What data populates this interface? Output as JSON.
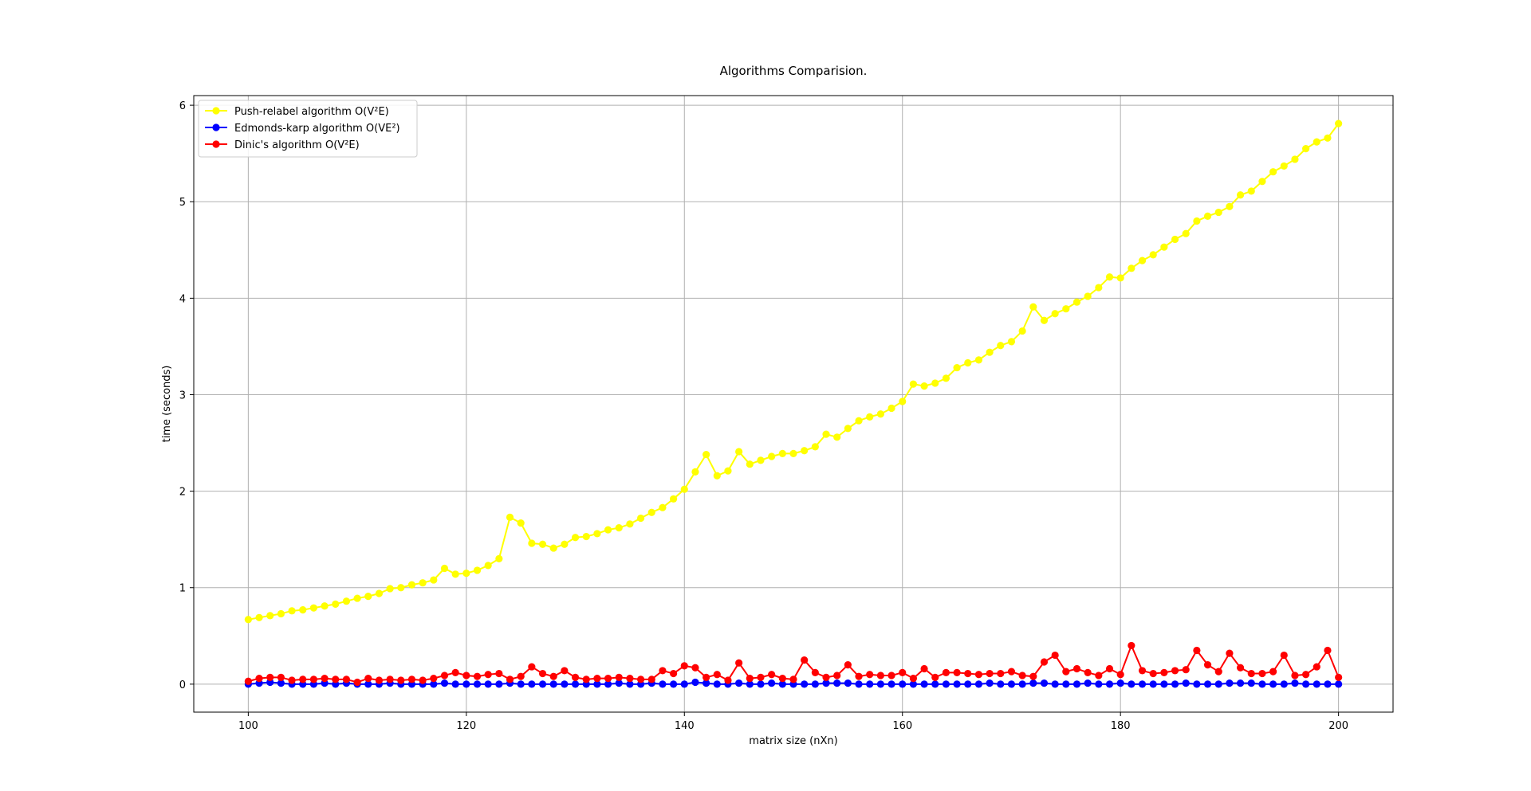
{
  "chart_data": {
    "type": "line",
    "title": "Algorithms Comparision.",
    "xlabel": "matrix size (nXn)",
    "ylabel": "time (seconds)",
    "xlim": [
      95,
      205
    ],
    "ylim": [
      -0.29,
      6.1
    ],
    "xticks": [
      100,
      120,
      140,
      160,
      180,
      200
    ],
    "yticks": [
      0,
      1,
      2,
      3,
      4,
      5,
      6
    ],
    "grid": true,
    "legend_position": "top-left",
    "x_start": 100,
    "series": [
      {
        "name": "Push-relabel algorithm O(V²E)",
        "color": "#ffff00",
        "marker": "circle",
        "values": [
          0.67,
          0.69,
          0.71,
          0.73,
          0.76,
          0.77,
          0.79,
          0.81,
          0.83,
          0.86,
          0.89,
          0.91,
          0.94,
          0.99,
          1.0,
          1.03,
          1.05,
          1.08,
          1.2,
          1.14,
          1.15,
          1.18,
          1.23,
          1.3,
          1.73,
          1.67,
          1.46,
          1.45,
          1.41,
          1.45,
          1.52,
          1.53,
          1.56,
          1.6,
          1.62,
          1.66,
          1.72,
          1.78,
          1.83,
          1.92,
          2.02,
          2.2,
          2.38,
          2.16,
          2.21,
          2.41,
          2.28,
          2.32,
          2.36,
          2.39,
          2.39,
          2.42,
          2.46,
          2.59,
          2.56,
          2.65,
          2.73,
          2.77,
          2.8,
          2.86,
          2.93,
          3.11,
          3.09,
          3.12,
          3.17,
          3.28,
          3.33,
          3.36,
          3.44,
          3.51,
          3.55,
          3.66,
          3.91,
          3.77,
          3.84,
          3.89,
          3.96,
          4.02,
          4.11,
          4.22,
          4.21,
          4.31,
          4.39,
          4.45,
          4.53,
          4.61,
          4.67,
          4.8,
          4.85,
          4.89,
          4.95,
          5.07,
          5.11,
          5.21,
          5.31,
          5.37,
          5.44,
          5.55,
          5.62,
          5.66,
          5.81
        ]
      },
      {
        "name": "Edmonds-karp algorithm O(VE²)",
        "color": "#0000ff",
        "marker": "circle",
        "values": [
          0.0,
          0.01,
          0.02,
          0.01,
          0.0,
          0.0,
          0.0,
          0.01,
          0.0,
          0.01,
          0.0,
          0.0,
          0.0,
          0.01,
          0.0,
          0.0,
          0.0,
          0.0,
          0.01,
          0.0,
          0.0,
          0.0,
          0.0,
          0.0,
          0.01,
          0.0,
          0.0,
          0.0,
          0.0,
          0.0,
          0.0,
          0.0,
          0.0,
          0.0,
          0.01,
          0.0,
          0.0,
          0.01,
          0.0,
          0.0,
          0.0,
          0.02,
          0.01,
          0.0,
          0.0,
          0.01,
          0.0,
          0.0,
          0.01,
          0.0,
          0.0,
          0.0,
          0.0,
          0.01,
          0.01,
          0.01,
          0.0,
          0.0,
          0.0,
          0.0,
          0.0,
          0.0,
          0.0,
          0.0,
          0.0,
          0.0,
          0.0,
          0.0,
          0.01,
          0.0,
          0.0,
          0.0,
          0.01,
          0.01,
          0.0,
          0.0,
          0.0,
          0.01,
          0.0,
          0.0,
          0.01,
          0.0,
          0.0,
          0.0,
          0.0,
          0.0,
          0.01,
          0.0,
          0.0,
          0.0,
          0.01,
          0.01,
          0.01,
          0.0,
          0.0,
          0.0,
          0.01,
          0.0,
          0.0,
          0.0,
          0.0
        ]
      },
      {
        "name": "Dinic's algorithm O(V²E)",
        "color": "#ff0000",
        "marker": "circle",
        "values": [
          0.03,
          0.06,
          0.07,
          0.07,
          0.04,
          0.05,
          0.05,
          0.06,
          0.05,
          0.05,
          0.02,
          0.06,
          0.04,
          0.05,
          0.04,
          0.05,
          0.04,
          0.06,
          0.09,
          0.12,
          0.09,
          0.08,
          0.1,
          0.11,
          0.05,
          0.08,
          0.18,
          0.11,
          0.08,
          0.14,
          0.07,
          0.05,
          0.06,
          0.06,
          0.07,
          0.06,
          0.05,
          0.05,
          0.14,
          0.11,
          0.19,
          0.17,
          0.07,
          0.1,
          0.04,
          0.22,
          0.06,
          0.07,
          0.1,
          0.06,
          0.05,
          0.25,
          0.12,
          0.07,
          0.09,
          0.2,
          0.08,
          0.1,
          0.09,
          0.09,
          0.12,
          0.06,
          0.16,
          0.07,
          0.12,
          0.12,
          0.11,
          0.1,
          0.11,
          0.11,
          0.13,
          0.09,
          0.08,
          0.23,
          0.3,
          0.13,
          0.16,
          0.12,
          0.09,
          0.16,
          0.1,
          0.4,
          0.14,
          0.11,
          0.12,
          0.14,
          0.15,
          0.35,
          0.2,
          0.13,
          0.32,
          0.17,
          0.11,
          0.11,
          0.13,
          0.3,
          0.09,
          0.1,
          0.18,
          0.35,
          0.07
        ]
      }
    ]
  }
}
